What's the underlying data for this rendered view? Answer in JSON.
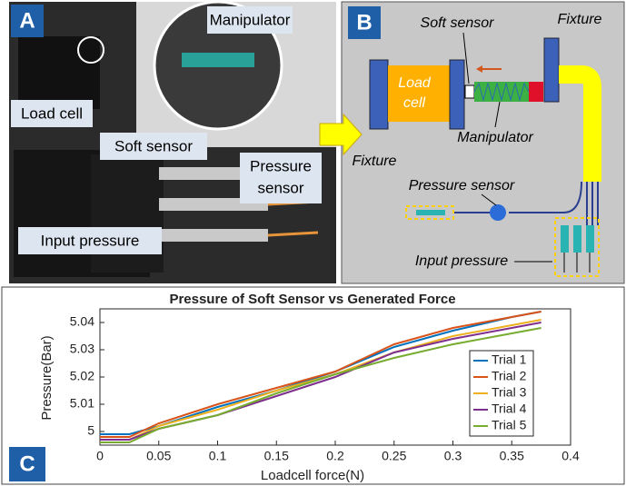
{
  "panel_a": {
    "label": "A",
    "manipulator": "Manipulator",
    "load_cell": "Load cell",
    "soft_sensor": "Soft sensor",
    "pressure_sensor": [
      "Pressure",
      "sensor"
    ],
    "input_pressure": "Input pressure"
  },
  "panel_b": {
    "label": "B",
    "soft_sensor": "Soft sensor",
    "fixture_top": "Fixture",
    "load_cell": [
      "Load",
      "cell"
    ],
    "manipulator": "Manipulator",
    "fixture_left": "Fixture",
    "pressure_sensor": "Pressure sensor",
    "input_pressure": "Input pressure"
  },
  "panel_c": {
    "label": "C"
  },
  "chart_data": {
    "type": "line",
    "title": "Pressure of Soft Sensor vs Generated Force",
    "x_label": "Loadcell force(N)",
    "y_label": "Pressure(Bar)",
    "x": [
      0,
      0.025,
      0.05,
      0.1,
      0.15,
      0.2,
      0.25,
      0.3,
      0.35,
      0.375
    ],
    "series": [
      {
        "name": "Trial 1",
        "color": "#0072bd",
        "values": [
          4.999,
          4.999,
          5.002,
          5.009,
          5.015,
          5.022,
          5.031,
          5.037,
          5.042,
          5.044
        ]
      },
      {
        "name": "Trial 2",
        "color": "#d95319",
        "values": [
          4.998,
          4.998,
          5.003,
          5.01,
          5.016,
          5.022,
          5.032,
          5.038,
          5.042,
          5.044
        ]
      },
      {
        "name": "Trial 3",
        "color": "#edb120",
        "values": [
          4.997,
          4.997,
          5.002,
          5.008,
          5.015,
          5.021,
          5.029,
          5.035,
          5.039,
          5.041
        ]
      },
      {
        "name": "Trial 4",
        "color": "#7e2f8e",
        "values": [
          4.997,
          4.997,
          5.001,
          5.006,
          5.013,
          5.02,
          5.029,
          5.034,
          5.038,
          5.04
        ]
      },
      {
        "name": "Trial 5",
        "color": "#77ac30",
        "values": [
          4.996,
          4.996,
          5.001,
          5.006,
          5.014,
          5.021,
          5.027,
          5.032,
          5.036,
          5.038
        ]
      }
    ],
    "xlim": [
      0,
      0.4
    ],
    "xticks": [
      0,
      0.05,
      0.1,
      0.15,
      0.2,
      0.25,
      0.3,
      0.35,
      0.4
    ],
    "ylim": [
      4.995,
      5.045
    ],
    "yticks": [
      5,
      5.01,
      5.02,
      5.03,
      5.04
    ]
  }
}
